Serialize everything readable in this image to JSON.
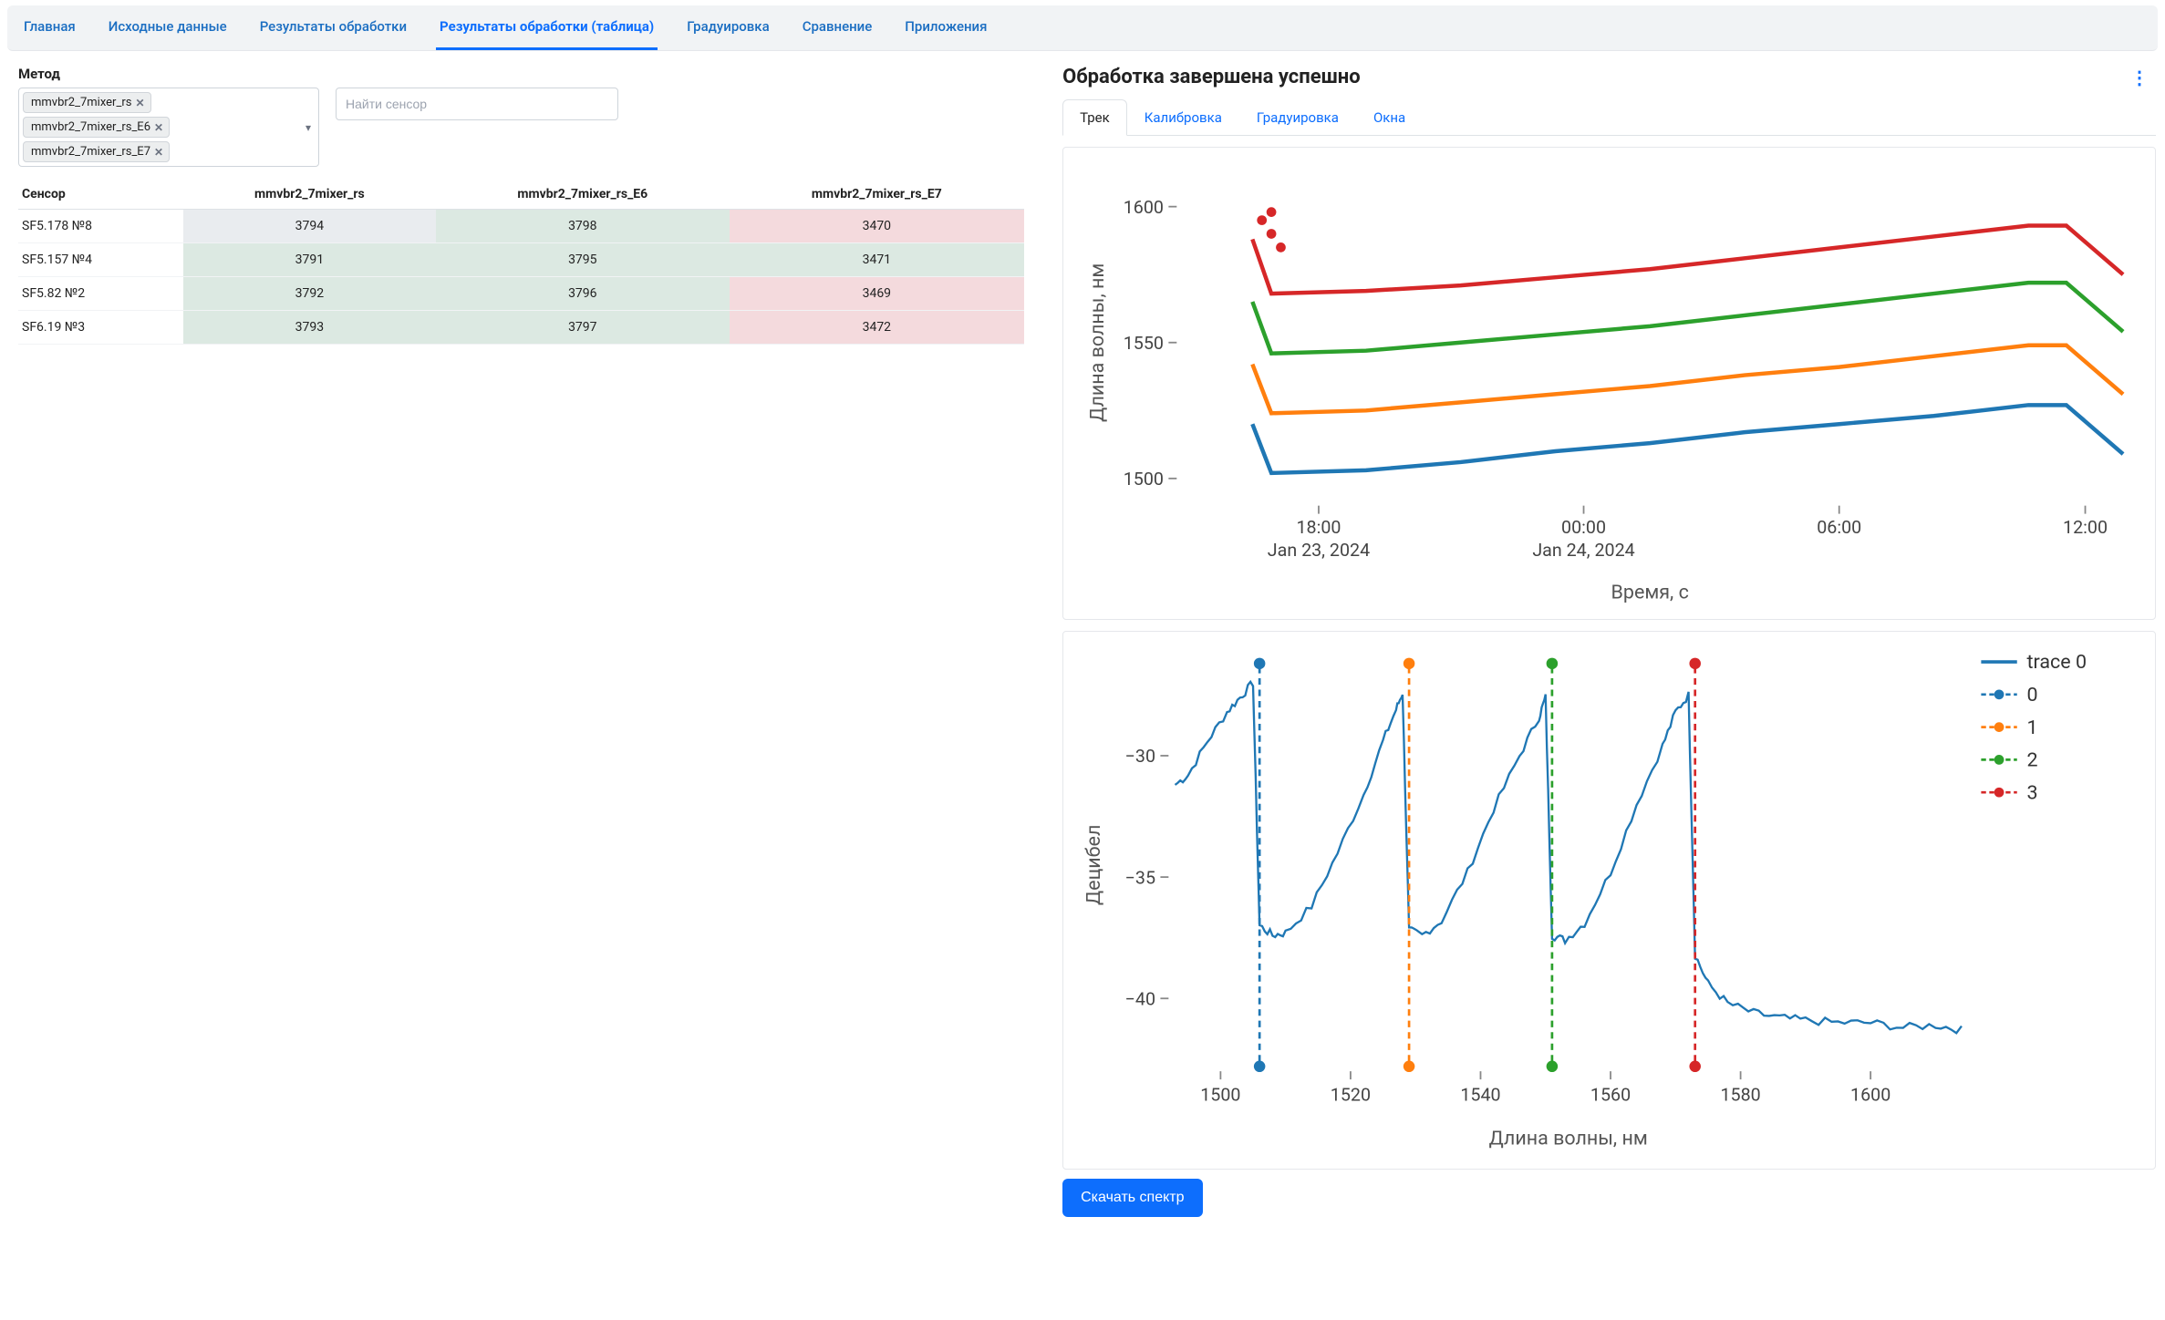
{
  "nav": {
    "items": [
      "Главная",
      "Исходные данные",
      "Результаты обработки",
      "Результаты обработки (таблица)",
      "Градуировка",
      "Сравнение",
      "Приложения"
    ],
    "active_index": 3
  },
  "method": {
    "label": "Метод",
    "selected": [
      "mmvbr2_7mixer_rs",
      "mmvbr2_7mixer_rs_E6",
      "mmvbr2_7mixer_rs_E7"
    ]
  },
  "search": {
    "placeholder": "Найти сенсор"
  },
  "table": {
    "columns": [
      "Сенсор",
      "mmvbr2_7mixer_rs",
      "mmvbr2_7mixer_rs_E6",
      "mmvbr2_7mixer_rs_E7"
    ],
    "rows": [
      {
        "sensor": "SF5.178 №8",
        "cells": [
          {
            "v": "3794",
            "c": "gray"
          },
          {
            "v": "3798",
            "c": "green"
          },
          {
            "v": "3470",
            "c": "red"
          }
        ]
      },
      {
        "sensor": "SF5.157 №4",
        "cells": [
          {
            "v": "3791",
            "c": "green"
          },
          {
            "v": "3795",
            "c": "green"
          },
          {
            "v": "3471",
            "c": "green"
          }
        ]
      },
      {
        "sensor": "SF5.82 №2",
        "cells": [
          {
            "v": "3792",
            "c": "green"
          },
          {
            "v": "3796",
            "c": "green"
          },
          {
            "v": "3469",
            "c": "red"
          }
        ]
      },
      {
        "sensor": "SF6.19 №3",
        "cells": [
          {
            "v": "3793",
            "c": "green"
          },
          {
            "v": "3797",
            "c": "green"
          },
          {
            "v": "3472",
            "c": "red"
          }
        ]
      }
    ]
  },
  "right": {
    "title": "Обработка завершена успешно",
    "tabs": [
      "Трек",
      "Калибровка",
      "Градуировка",
      "Окна"
    ],
    "active_tab": 0
  },
  "chart1": {
    "type": "line",
    "ylabel": "Длина волны, нм",
    "xlabel": "Время, с",
    "ylim": [
      1490,
      1610
    ],
    "xlim": [
      0,
      100
    ],
    "yticks": [
      1500,
      1550,
      1600
    ],
    "xticks": [
      {
        "pos": 15,
        "label": "18:00",
        "sub": "Jan 23, 2024"
      },
      {
        "pos": 43,
        "label": "00:00",
        "sub": "Jan 24, 2024"
      },
      {
        "pos": 70,
        "label": "06:00",
        "sub": ""
      },
      {
        "pos": 96,
        "label": "12:00",
        "sub": ""
      }
    ],
    "series": [
      {
        "color": "#1f77b4",
        "points": [
          [
            8,
            1520
          ],
          [
            10,
            1502
          ],
          [
            20,
            1503
          ],
          [
            30,
            1506
          ],
          [
            40,
            1510
          ],
          [
            50,
            1513
          ],
          [
            60,
            1517
          ],
          [
            70,
            1520
          ],
          [
            80,
            1523
          ],
          [
            90,
            1527
          ],
          [
            94,
            1527
          ],
          [
            100,
            1509
          ]
        ]
      },
      {
        "color": "#ff7f0e",
        "points": [
          [
            8,
            1542
          ],
          [
            10,
            1524
          ],
          [
            20,
            1525
          ],
          [
            30,
            1528
          ],
          [
            40,
            1531
          ],
          [
            50,
            1534
          ],
          [
            60,
            1538
          ],
          [
            70,
            1541
          ],
          [
            80,
            1545
          ],
          [
            90,
            1549
          ],
          [
            94,
            1549
          ],
          [
            100,
            1531
          ]
        ]
      },
      {
        "color": "#2ca02c",
        "points": [
          [
            8,
            1565
          ],
          [
            10,
            1546
          ],
          [
            20,
            1547
          ],
          [
            30,
            1550
          ],
          [
            40,
            1553
          ],
          [
            50,
            1556
          ],
          [
            60,
            1560
          ],
          [
            70,
            1564
          ],
          [
            80,
            1568
          ],
          [
            90,
            1572
          ],
          [
            94,
            1572
          ],
          [
            100,
            1554
          ]
        ]
      },
      {
        "color": "#d62728",
        "points": [
          [
            8,
            1588
          ],
          [
            10,
            1568
          ],
          [
            20,
            1569
          ],
          [
            30,
            1571
          ],
          [
            40,
            1574
          ],
          [
            50,
            1577
          ],
          [
            60,
            1581
          ],
          [
            70,
            1585
          ],
          [
            80,
            1589
          ],
          [
            90,
            1593
          ],
          [
            94,
            1593
          ],
          [
            100,
            1575
          ]
        ]
      }
    ],
    "red_dots": [
      [
        9,
        1595
      ],
      [
        10,
        1590
      ],
      [
        11,
        1585
      ],
      [
        10,
        1598
      ]
    ],
    "background_color": "#ffffff",
    "font_size": 12
  },
  "chart2": {
    "type": "line",
    "ylabel": "Децибел",
    "xlabel": "Длина волны, нм",
    "ylim": [
      -43,
      -26
    ],
    "xlim": [
      1492,
      1615
    ],
    "yticks": [
      -40,
      -35,
      -30
    ],
    "xticks": [
      1500,
      1520,
      1540,
      1560,
      1580,
      1600
    ],
    "trace_color": "#1f77b4",
    "trace": [
      [
        1493,
        -31.2
      ],
      [
        1495,
        -30.8
      ],
      [
        1498,
        -29.4
      ],
      [
        1501,
        -28.2
      ],
      [
        1503,
        -27.6
      ],
      [
        1505,
        -27.0
      ],
      [
        1506,
        -37.0
      ],
      [
        1508,
        -37.4
      ],
      [
        1510,
        -37.3
      ],
      [
        1514,
        -36.2
      ],
      [
        1518,
        -34.0
      ],
      [
        1522,
        -31.6
      ],
      [
        1525,
        -29.4
      ],
      [
        1527,
        -28.1
      ],
      [
        1528,
        -27.4
      ],
      [
        1529,
        -37.2
      ],
      [
        1531,
        -37.4
      ],
      [
        1534,
        -36.8
      ],
      [
        1538,
        -34.8
      ],
      [
        1542,
        -32.2
      ],
      [
        1546,
        -30.0
      ],
      [
        1549,
        -28.4
      ],
      [
        1550,
        -27.6
      ],
      [
        1551,
        -37.4
      ],
      [
        1553,
        -37.6
      ],
      [
        1556,
        -36.9
      ],
      [
        1560,
        -34.8
      ],
      [
        1564,
        -32.0
      ],
      [
        1568,
        -29.6
      ],
      [
        1570,
        -28.2
      ],
      [
        1572,
        -27.5
      ],
      [
        1573,
        -38.2
      ],
      [
        1575,
        -39.4
      ],
      [
        1578,
        -40.2
      ],
      [
        1582,
        -40.6
      ],
      [
        1586,
        -40.8
      ],
      [
        1590,
        -40.9
      ],
      [
        1595,
        -41.0
      ],
      [
        1600,
        -41.0
      ],
      [
        1605,
        -41.2
      ],
      [
        1610,
        -41.1
      ],
      [
        1614,
        -41.3
      ]
    ],
    "vlines": [
      {
        "x": 1506,
        "color": "#1f77b4",
        "label": "0"
      },
      {
        "x": 1529,
        "color": "#ff7f0e",
        "label": "1"
      },
      {
        "x": 1551,
        "color": "#2ca02c",
        "label": "2"
      },
      {
        "x": 1573,
        "color": "#d62728",
        "label": "3"
      }
    ],
    "legend_trace": "trace 0",
    "background_color": "#ffffff"
  },
  "download_label": "Скачать спектр"
}
